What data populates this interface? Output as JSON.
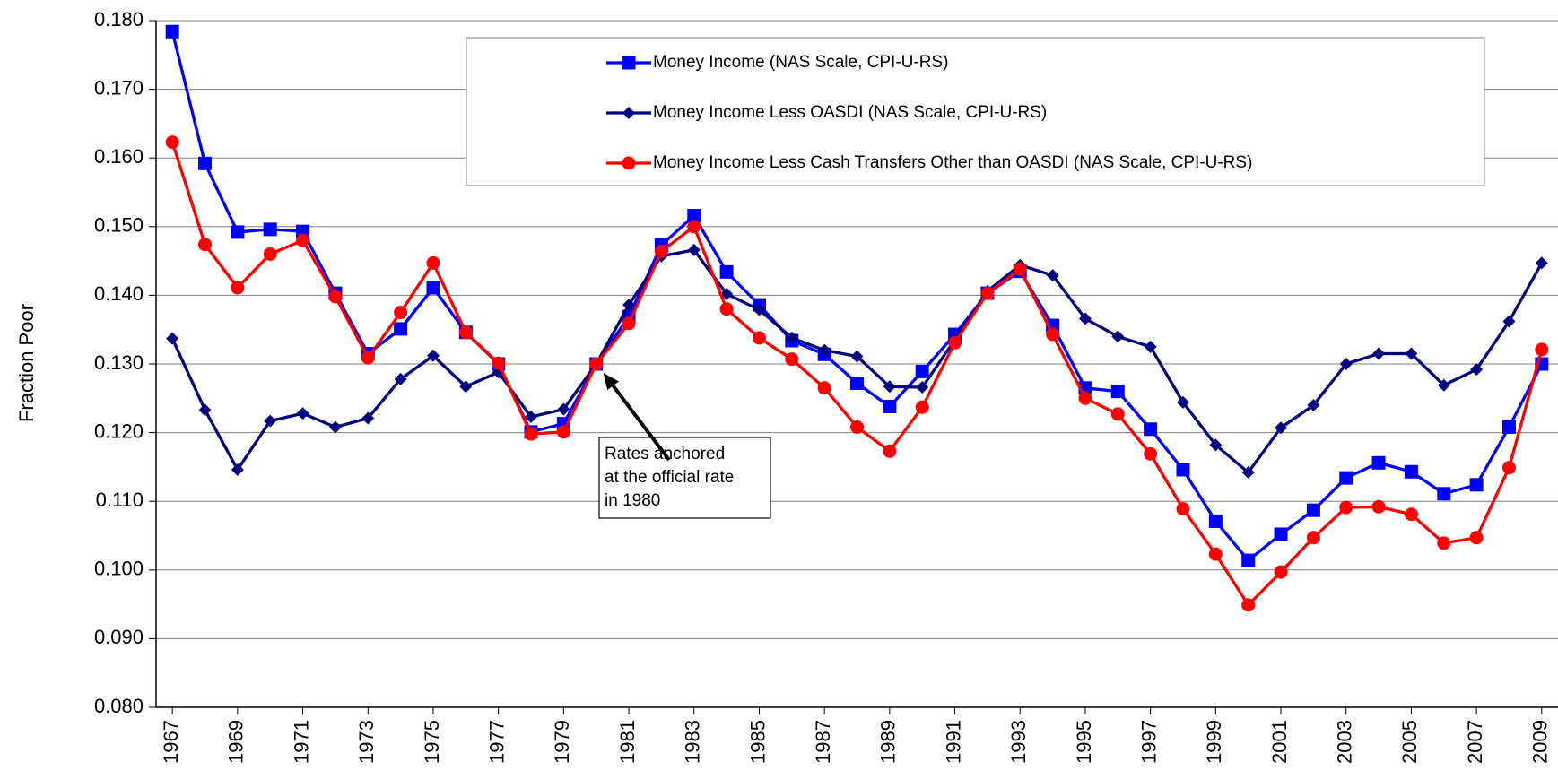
{
  "chart_data": {
    "type": "line",
    "ylabel": "Fraction Poor",
    "x": [
      1967,
      1968,
      1969,
      1970,
      1971,
      1972,
      1973,
      1974,
      1975,
      1976,
      1977,
      1978,
      1979,
      1980,
      1981,
      1982,
      1983,
      1984,
      1985,
      1986,
      1987,
      1988,
      1989,
      1990,
      1991,
      1992,
      1993,
      1994,
      1995,
      1996,
      1997,
      1998,
      1999,
      2000,
      2001,
      2002,
      2003,
      2004,
      2005,
      2006,
      2007,
      2008,
      2009
    ],
    "xlim": [
      1966.5,
      2009.5
    ],
    "xticks": [
      1967,
      1969,
      1971,
      1973,
      1975,
      1977,
      1979,
      1981,
      1983,
      1985,
      1987,
      1989,
      1991,
      1993,
      1995,
      1997,
      1999,
      2001,
      2003,
      2005,
      2007,
      2009
    ],
    "ylim": [
      0.08,
      0.18
    ],
    "yticks": [
      {
        "value": 0.08,
        "label": "0.080"
      },
      {
        "value": 0.09,
        "label": "0.090"
      },
      {
        "value": 0.1,
        "label": "0.100"
      },
      {
        "value": 0.11,
        "label": "0.110"
      },
      {
        "value": 0.12,
        "label": "0.120"
      },
      {
        "value": 0.13,
        "label": "0.130"
      },
      {
        "value": 0.14,
        "label": "0.140"
      },
      {
        "value": 0.15,
        "label": "0.150"
      },
      {
        "value": 0.16,
        "label": "0.160"
      },
      {
        "value": 0.17,
        "label": "0.170"
      },
      {
        "value": 0.18,
        "label": "0.180"
      }
    ],
    "grid": true,
    "legend": "top",
    "series": [
      {
        "name": "Money Income (NAS Scale, CPI-U-RS)",
        "color": "#0000ff",
        "marker": "square",
        "values": [
          0.1784,
          0.1592,
          0.1492,
          0.1496,
          0.1493,
          0.1403,
          0.1315,
          0.1351,
          0.1411,
          0.1346,
          0.13,
          0.1201,
          0.1213,
          0.13,
          0.1369,
          0.1473,
          0.1516,
          0.1434,
          0.1386,
          0.1334,
          0.1314,
          0.1272,
          0.1238,
          0.1289,
          0.1343,
          0.1403,
          0.1435,
          0.1356,
          0.1265,
          0.126,
          0.1205,
          0.1146,
          0.1071,
          0.1014,
          0.1052,
          0.1087,
          0.1134,
          0.1156,
          0.1143,
          0.1111,
          0.1124,
          0.1208,
          0.13
        ]
      },
      {
        "name": "Money Income Less OASDI (NAS Scale, CPI-U-RS)",
        "color": "#000080",
        "marker": "diamond",
        "values": [
          0.1337,
          0.1233,
          0.1146,
          0.1217,
          0.1228,
          0.1208,
          0.1221,
          0.1278,
          0.1312,
          0.1267,
          0.1288,
          0.1223,
          0.1234,
          0.13,
          0.1386,
          0.1457,
          0.1466,
          0.1402,
          0.1379,
          0.1338,
          0.132,
          0.1311,
          0.1267,
          0.1266,
          0.1335,
          0.1406,
          0.1444,
          0.1429,
          0.1366,
          0.134,
          0.1325,
          0.1244,
          0.1182,
          0.1142,
          0.1207,
          0.124,
          0.13,
          0.1315,
          0.1315,
          0.1269,
          0.1292,
          0.1362,
          0.1447
        ]
      },
      {
        "name": "Money Income Less Cash Transfers Other than OASDI (NAS Scale, CPI-U-RS)",
        "color": "#ff0000",
        "marker": "circle",
        "values": [
          0.1623,
          0.1474,
          0.1411,
          0.146,
          0.148,
          0.1398,
          0.1309,
          0.1375,
          0.1447,
          0.1346,
          0.1301,
          0.1198,
          0.1201,
          0.13,
          0.1359,
          0.1464,
          0.15,
          0.138,
          0.1338,
          0.1307,
          0.1265,
          0.1208,
          0.1173,
          0.1237,
          0.1331,
          0.1403,
          0.1438,
          0.1343,
          0.125,
          0.1227,
          0.1169,
          0.1089,
          0.1023,
          0.0949,
          0.0997,
          0.1047,
          0.1091,
          0.1092,
          0.1081,
          0.1039,
          0.1047,
          0.1149,
          0.1321
        ]
      }
    ],
    "annotation": {
      "lines": [
        "Rates anchored",
        "at the official rate",
        "in 1980"
      ],
      "x": 1980,
      "y": 0.13
    }
  }
}
